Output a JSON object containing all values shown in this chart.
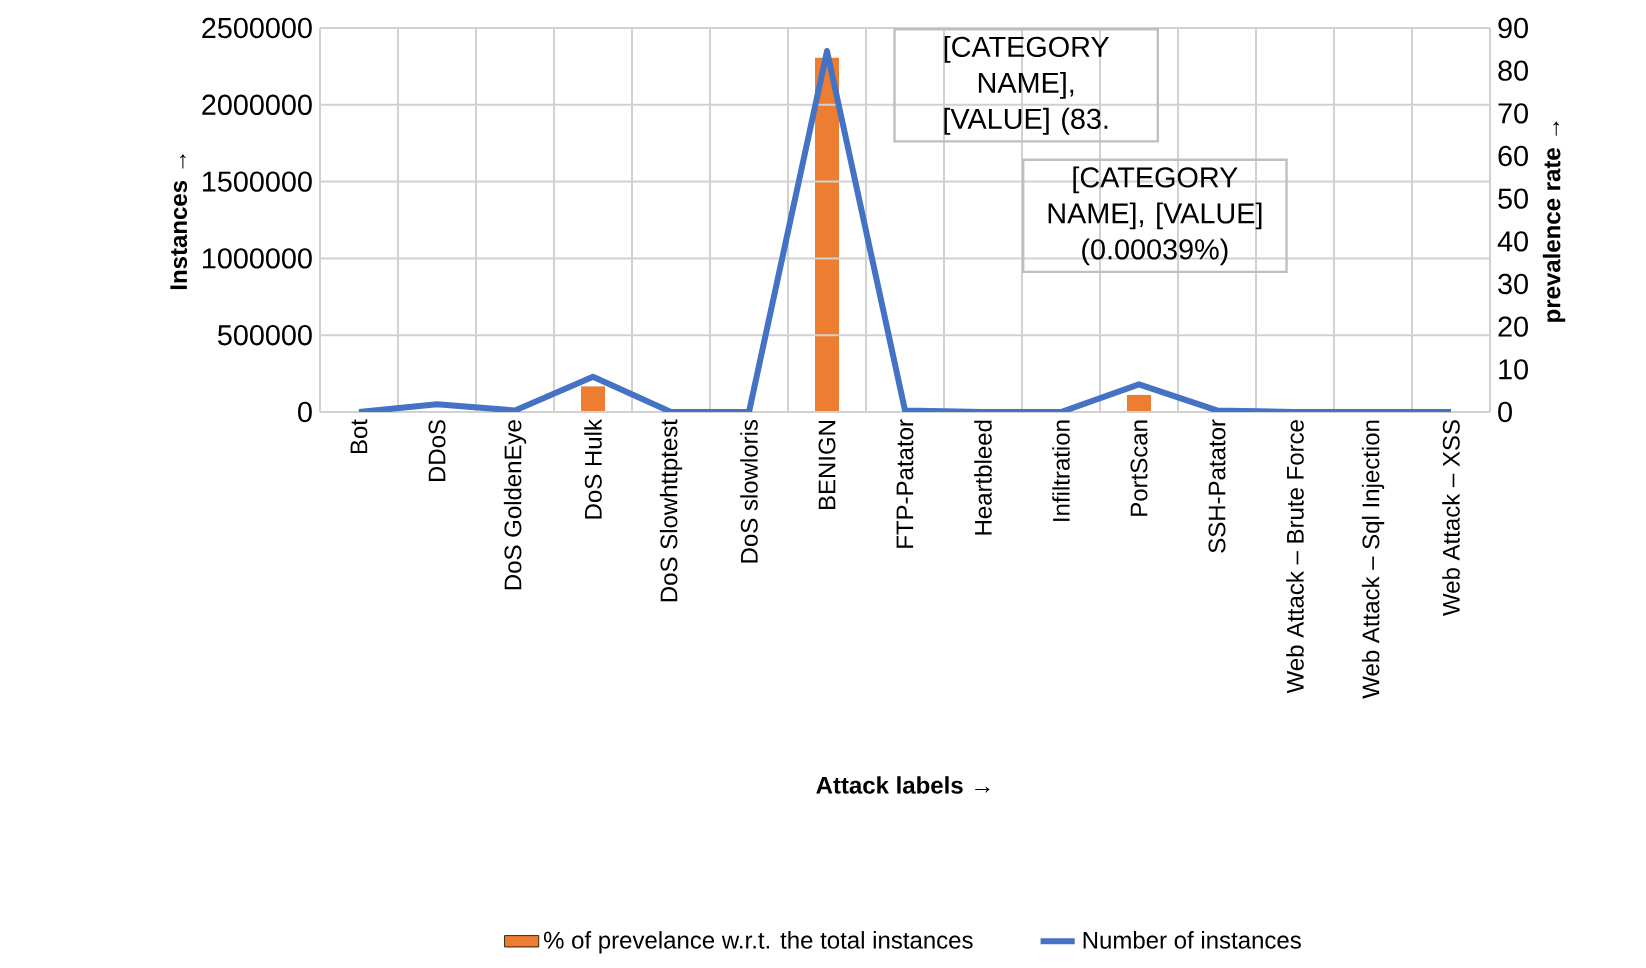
{
  "chart_data": {
    "type": "bar",
    "xlabel": "Attack labels →",
    "ylabel": "Instances →",
    "y2label": "prevalence rate →",
    "categories": [
      "Bot",
      "DDoS",
      "DoS GoldenEye",
      "DoS Hulk",
      "DoS Slowhttptest",
      "DoS slowloris",
      "BENIGN",
      "FTP-Patator",
      "Heartbleed",
      "Infiltration",
      "PortScan",
      "SSH-Patator",
      "Web Attack – Brute Force",
      "Web Attack – Sql Injection",
      "Web Attack – XSS"
    ],
    "series": [
      {
        "name": "% of prevelance w.r.t. the total instances",
        "axis": "y2",
        "color": "#ed7d31",
        "values": [
          0,
          0,
          0,
          6,
          0,
          0,
          83,
          0,
          0,
          0,
          4,
          0,
          0,
          0,
          0
        ]
      },
      {
        "name": "Number of instances",
        "type": "line",
        "axis": "y",
        "color": "#4472c4",
        "values": [
          0,
          50000,
          10000,
          230000,
          0,
          0,
          2350000,
          10000,
          0,
          0,
          180000,
          10000,
          0,
          0,
          0
        ]
      }
    ],
    "ylim": [
      0,
      2500000
    ],
    "yticks": [
      0,
      500000,
      1000000,
      1500000,
      2000000,
      2500000
    ],
    "y2lim": [
      0,
      90
    ],
    "y2ticks": [
      0,
      10,
      20,
      30,
      40,
      50,
      60,
      70,
      80,
      90
    ],
    "grid": true,
    "legend": "bottom",
    "annotations": [
      "[CATEGORY NAME], [VALUE] (83.",
      "[CATEGORY NAME], [VALUE] (0.00039%)"
    ]
  }
}
